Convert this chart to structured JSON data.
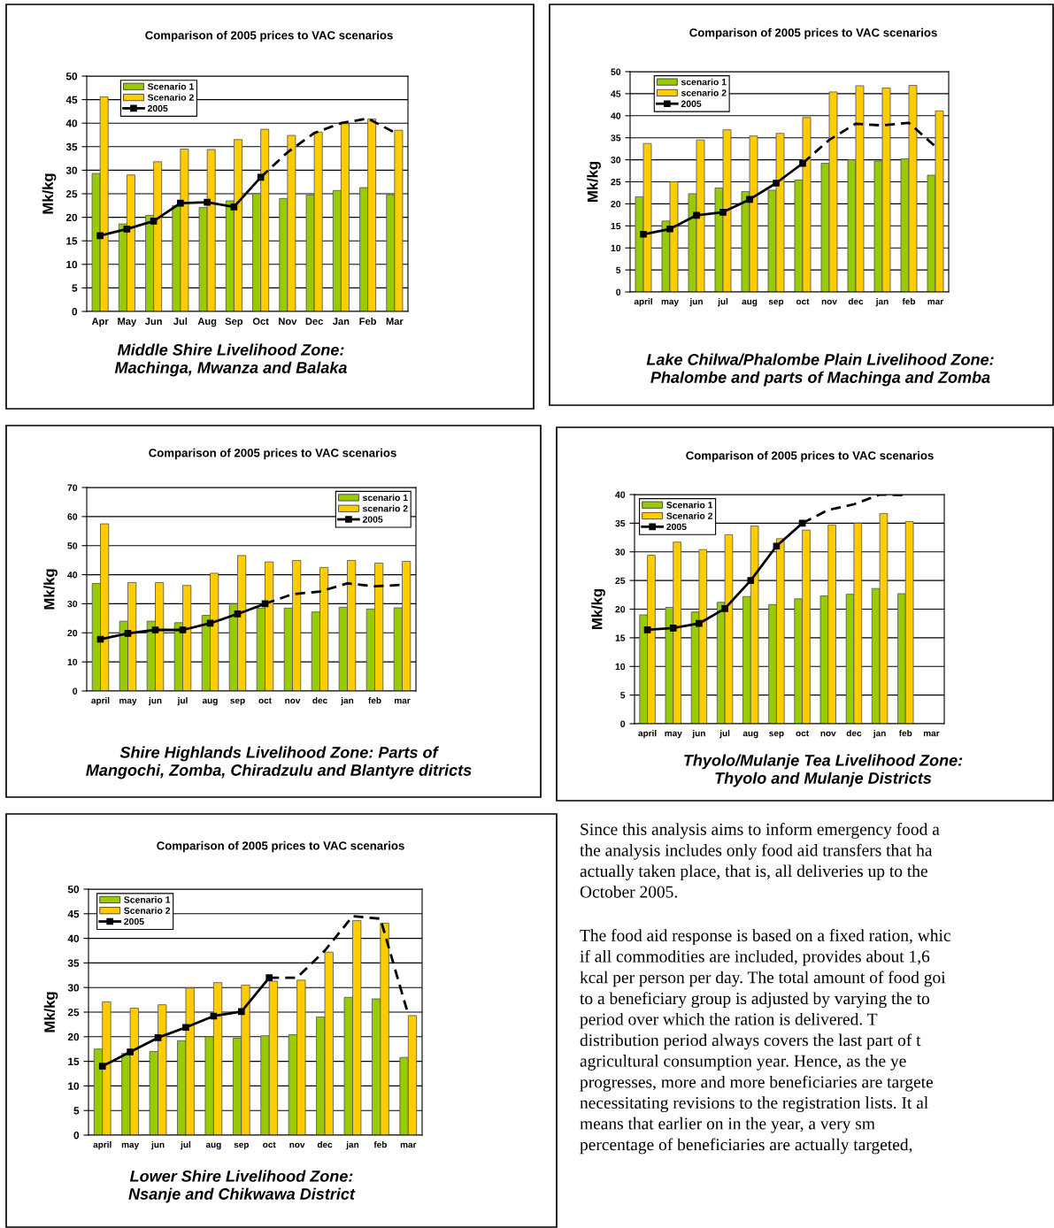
{
  "chart_data": [
    {
      "type": "bar",
      "title": "Comparison of 2005 prices to VAC scenarios",
      "ylabel": "Mk/kg",
      "annotations": [
        "Middle Shire Livelihood Zone:\nMachinga, Mwanza and Balaka"
      ],
      "categories": [
        "Apr",
        "May",
        "Jun",
        "Jul",
        "Aug",
        "Sep",
        "Oct",
        "Nov",
        "Dec",
        "Jan",
        "Feb",
        "Mar"
      ],
      "ylim": [
        0,
        50
      ],
      "yticks": [
        0,
        5,
        10,
        15,
        20,
        25,
        30,
        35,
        40,
        45,
        50
      ],
      "grid": "y",
      "legend": "top left",
      "series": [
        {
          "name": "Scenario 1",
          "color": "#99cc00",
          "values": [
            29.3,
            18.6,
            20.4,
            22.5,
            22.1,
            23.5,
            25,
            24,
            24.7,
            25.7,
            26.3,
            24.8
          ]
        },
        {
          "name": "Scenario 2",
          "color": "#ffcc00",
          "values": [
            45.6,
            29,
            31.8,
            34.5,
            34.4,
            36.5,
            38.7,
            37.4,
            38.1,
            39.9,
            40.9,
            38.5
          ]
        },
        {
          "name": "2005",
          "type": "line",
          "color": "#000000",
          "marker": "square",
          "line_style": "solid",
          "values": [
            16.1,
            17.5,
            19.2,
            23,
            23.2,
            22.2,
            28.5,
            null,
            null,
            null,
            null,
            null
          ]
        },
        {
          "type": "line",
          "color": "#000000",
          "line_style": "dashed",
          "values": [
            null,
            null,
            null,
            null,
            null,
            null,
            28.5,
            33.8,
            37.9,
            40,
            41,
            38
          ]
        }
      ]
    },
    {
      "type": "bar",
      "title": "Comparison of 2005 prices to VAC scenarios",
      "ylabel": "Mk/kg",
      "annotations": [
        "Lake Chilwa/Phalombe Plain Livelihood Zone:\nPhalombe and parts of Machinga and Zomba"
      ],
      "categories": [
        "april",
        "may",
        "jun",
        "jul",
        "aug",
        "sep",
        "oct",
        "nov",
        "dec",
        "jan",
        "feb",
        "mar"
      ],
      "ylim": [
        0,
        50
      ],
      "yticks": [
        0,
        5,
        10,
        15,
        20,
        25,
        30,
        35,
        40,
        45,
        50
      ],
      "grid": "y",
      "legend": "top left",
      "series": [
        {
          "name": "scenario 1",
          "color": "#99cc00",
          "values": [
            21.6,
            16.1,
            22.3,
            23.6,
            22.8,
            23.1,
            25.4,
            29.2,
            30,
            29.7,
            30.2,
            26.5
          ]
        },
        {
          "name": "scenario 2",
          "color": "#ffcc00",
          "values": [
            33.7,
            25,
            34.5,
            36.8,
            35.4,
            36,
            39.6,
            45.4,
            46.8,
            46.3,
            46.9,
            41.1
          ]
        },
        {
          "name": "2005",
          "type": "line",
          "color": "#000000",
          "marker": "square",
          "line_style": "solid",
          "values": [
            13.1,
            14.3,
            17.4,
            18.1,
            21,
            24.7,
            29.2,
            null,
            null,
            null,
            null,
            null
          ]
        },
        {
          "type": "line",
          "color": "#000000",
          "line_style": "dashed",
          "values": [
            null,
            null,
            null,
            null,
            null,
            null,
            29.2,
            34.5,
            38.2,
            37.8,
            38.4,
            33
          ]
        }
      ]
    },
    {
      "type": "bar",
      "title": "Comparison of 2005 prices to VAC scenarios",
      "ylabel": "Mk/kg",
      "annotations": [
        "Shire Highlands Livelihood Zone: Parts of\nMangochi, Zomba, Chiradzulu and Blantyre ditricts"
      ],
      "categories": [
        "april",
        "may",
        "jun",
        "jul",
        "aug",
        "sep",
        "oct",
        "nov",
        "dec",
        "jan",
        "feb",
        "mar"
      ],
      "ylim": [
        0,
        70
      ],
      "yticks": [
        0,
        10,
        20,
        30,
        40,
        50,
        60,
        70
      ],
      "grid": "y",
      "legend": "top right",
      "series": [
        {
          "name": "scenario 1",
          "color": "#99cc00",
          "values": [
            37,
            24,
            24,
            23.5,
            26,
            30,
            28.5,
            28.5,
            27.2,
            28.8,
            28.2,
            28.6
          ]
        },
        {
          "name": "scenario 2",
          "color": "#ffcc00",
          "values": [
            57.5,
            37.3,
            37.3,
            36.3,
            40.5,
            46.6,
            44.4,
            44.9,
            42.5,
            44.9,
            44,
            44.6
          ]
        },
        {
          "name": "2005",
          "type": "line",
          "color": "#000000",
          "marker": "square",
          "line_style": "solid",
          "values": [
            17.8,
            19.8,
            21,
            21,
            23.3,
            26.5,
            30,
            null,
            null,
            null,
            null,
            null
          ]
        },
        {
          "type": "line",
          "color": "#000000",
          "line_style": "dashed",
          "values": [
            null,
            null,
            null,
            null,
            null,
            null,
            30,
            33.3,
            34.2,
            37,
            36,
            36.5
          ]
        }
      ]
    },
    {
      "type": "bar",
      "title": "Comparison of 2005 prices to VAC scenarios",
      "ylabel": "Mk/kg",
      "annotations": [
        "Thyolo/Mulanje Tea Livelihood Zone:\nThyolo and Mulanje Districts"
      ],
      "categories": [
        "april",
        "may",
        "jun",
        "jul",
        "aug",
        "sep",
        "oct",
        "nov",
        "dec",
        "jan",
        "feb",
        "mar"
      ],
      "ylim": [
        0,
        40
      ],
      "yticks": [
        0,
        5,
        10,
        15,
        20,
        25,
        30,
        35,
        40
      ],
      "grid": "y",
      "legend": "top left",
      "series": [
        {
          "name": "Scenario 1",
          "color": "#99cc00",
          "values": [
            19,
            20.3,
            19.5,
            21.2,
            22.2,
            20.8,
            21.8,
            22.3,
            22.6,
            23.6,
            22.7,
            null
          ]
        },
        {
          "name": "Scenario 2",
          "color": "#ffcc00",
          "values": [
            29.4,
            31.7,
            30.4,
            33,
            34.5,
            32.3,
            33.8,
            34.7,
            35,
            36.7,
            35.3,
            null
          ]
        },
        {
          "name": "2005",
          "type": "line",
          "color": "#000000",
          "marker": "square",
          "line_style": "solid",
          "values": [
            16.4,
            16.7,
            17.5,
            20.1,
            25,
            31,
            35,
            null,
            null,
            null,
            null,
            null
          ]
        },
        {
          "type": "line",
          "color": "#000000",
          "line_style": "dashed",
          "values": [
            null,
            null,
            null,
            null,
            null,
            null,
            35,
            37.3,
            38.3,
            40,
            39.9,
            null
          ]
        }
      ]
    },
    {
      "type": "bar",
      "title": "Comparison of 2005 prices to VAC scenarios",
      "ylabel": "Mk/kg",
      "annotations": [
        "Lower Shire Livelihood Zone:\nNsanje and Chikwawa District"
      ],
      "categories": [
        "april",
        "may",
        "jun",
        "jul",
        "aug",
        "sep",
        "oct",
        "nov",
        "dec",
        "jan",
        "feb",
        "mar"
      ],
      "ylim": [
        0,
        50
      ],
      "yticks": [
        0,
        5,
        10,
        15,
        20,
        25,
        30,
        35,
        40,
        45,
        50
      ],
      "grid": "y",
      "legend": "top left",
      "series": [
        {
          "name": "Scenario 1",
          "color": "#99cc00",
          "values": [
            17.5,
            16.6,
            17,
            19.2,
            20,
            19.7,
            20.2,
            20.4,
            24,
            28,
            27.7,
            15.8
          ]
        },
        {
          "name": "Scenario 2",
          "color": "#ffcc00",
          "values": [
            27.1,
            25.8,
            26.5,
            29.9,
            31,
            30.5,
            31.3,
            31.5,
            37.2,
            43.6,
            43.1,
            24.3
          ]
        },
        {
          "name": "2005",
          "type": "line",
          "color": "#000000",
          "marker": "square",
          "line_style": "solid",
          "values": [
            14,
            16.9,
            19.8,
            21.9,
            24.2,
            25.1,
            32,
            null,
            null,
            null,
            null,
            null
          ]
        },
        {
          "type": "line",
          "color": "#000000",
          "line_style": "dashed",
          "values": [
            null,
            null,
            null,
            null,
            null,
            null,
            32,
            32,
            37.5,
            44.5,
            44,
            24.5
          ]
        }
      ]
    },
    {
      "type": "other",
      "annotations": [
        "Since this analysis aims to inform emergency food a\nthe analysis includes only food aid transfers that ha\nactually taken place, that is, all deliveries up to the\nOctober 2005.",
        "The food aid response is based on a fixed ration, whic\nif all commodities are included, provides about 1,6\nkcal per person per day. The total amount of food goi\nto a beneficiary group is adjusted by varying the to\nperiod over which the ration is delivered. T\ndistribution period always covers the last part of t\nagricultural consumption year. Hence, as the ye\nprogresses, more and more beneficiaries are targete\nnecessitating revisions to the registration lists. It al\nmeans that earlier on in the year, a very sm\npercentage of beneficiaries are actually targeted,"
      ]
    }
  ]
}
